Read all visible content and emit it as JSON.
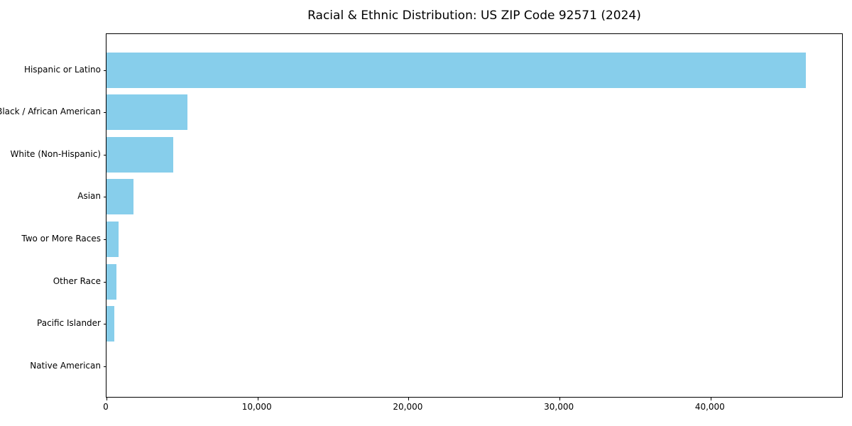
{
  "chart_data": {
    "type": "bar",
    "orientation": "horizontal",
    "title": "Racial & Ethnic Distribution: US ZIP Code 92571 (2024)",
    "categories": [
      "Hispanic or Latino",
      "Black / African American",
      "White (Non-Hispanic)",
      "Asian",
      "Two or More Races",
      "Other Race",
      "Pacific Islander",
      "Native American"
    ],
    "values": [
      46400,
      5350,
      4450,
      1800,
      800,
      650,
      500,
      0
    ],
    "xlabel": "",
    "ylabel": "",
    "xlim": [
      0,
      48800
    ],
    "xticks": [
      0,
      10000,
      20000,
      30000,
      40000
    ],
    "xtick_labels": [
      "0",
      "10,000",
      "20,000",
      "30,000",
      "40,000"
    ],
    "bar_color": "#87CEEB",
    "axis_color": "#000000",
    "background_color": "#ffffff",
    "grid": false,
    "legend": null,
    "value_labels_shown": false
  }
}
